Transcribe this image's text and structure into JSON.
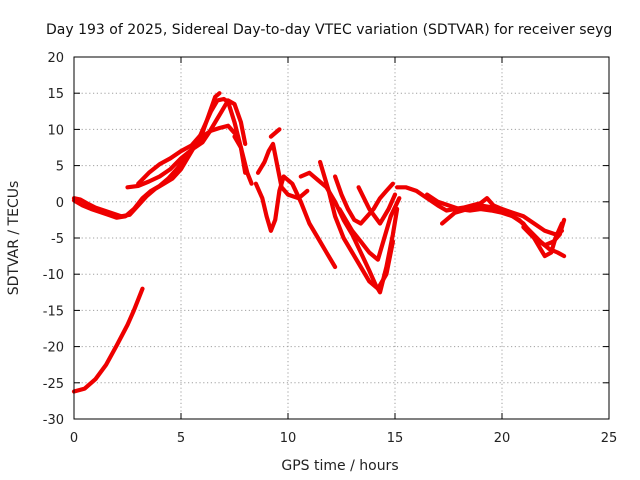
{
  "chart_data": {
    "type": "scatter",
    "title": "Day 193 of 2025, Sidereal Day-to-day VTEC variation (SDTVAR) for receiver seyg",
    "xlabel": "GPS time / hours",
    "ylabel": "SDTVAR / TECUs",
    "xlim": [
      0,
      25
    ],
    "ylim": [
      -30,
      20
    ],
    "xticks": [
      "0",
      "5",
      "10",
      "15",
      "20",
      "25"
    ],
    "yticks": [
      "-30",
      "-25",
      "-20",
      "-15",
      "-10",
      "-5",
      "0",
      "5",
      "10",
      "15",
      "20"
    ],
    "grid": true,
    "marker_color": "#ee0000",
    "series": [
      {
        "name": "seg-1",
        "x": [
          0,
          0.5,
          1.0,
          1.5,
          2.0,
          2.5,
          2.8,
          3.2
        ],
        "y": [
          -26.2,
          -25.8,
          -24.5,
          -22.5,
          -19.8,
          -17.0,
          -15.0,
          -12.0
        ]
      },
      {
        "name": "seg-2",
        "x": [
          0,
          0.3,
          0.6,
          1.0,
          1.4,
          1.8,
          2.2,
          2.6,
          3.0,
          3.4,
          3.8,
          4.2,
          4.6,
          5.0,
          5.4,
          5.8,
          6.1,
          6.4,
          6.7,
          7.0,
          7.2,
          7.5,
          7.8,
          8.0
        ],
        "y": [
          0.5,
          0.3,
          -0.2,
          -0.8,
          -1.2,
          -1.6,
          -2.0,
          -1.8,
          -0.5,
          0.8,
          1.8,
          2.5,
          3.2,
          4.5,
          6.5,
          8.5,
          10.5,
          12.5,
          14.0,
          14.2,
          13.8,
          11.0,
          7.5,
          4.0
        ]
      },
      {
        "name": "seg-3",
        "x": [
          0,
          0.4,
          0.8,
          1.2,
          1.6,
          2.0,
          2.4,
          2.8,
          3.2,
          3.6,
          4.0,
          4.4,
          4.8,
          5.2,
          5.6,
          6.0,
          6.4,
          6.8,
          7.2,
          7.5
        ],
        "y": [
          0.2,
          -0.5,
          -1.0,
          -1.4,
          -1.8,
          -2.2,
          -2.0,
          -1.0,
          0.5,
          1.5,
          2.2,
          3.2,
          4.5,
          6.0,
          7.5,
          9.0,
          9.8,
          10.2,
          10.5,
          9.5
        ]
      },
      {
        "name": "seg-4",
        "x": [
          2.5,
          3.0,
          3.5,
          4.0,
          4.5,
          5.0,
          5.5,
          6.0,
          6.3,
          6.6,
          6.9,
          7.2,
          7.5,
          7.8,
          8.0
        ],
        "y": [
          2.0,
          2.2,
          2.8,
          3.5,
          4.5,
          6.0,
          7.2,
          8.2,
          9.5,
          11.0,
          12.5,
          14.0,
          13.5,
          11.0,
          8.0
        ]
      },
      {
        "name": "seg-5",
        "x": [
          3.0,
          3.5,
          4.0,
          4.5,
          5.0,
          5.5,
          6.0,
          6.3,
          6.6,
          6.8
        ],
        "y": [
          2.5,
          4.0,
          5.2,
          6.0,
          7.0,
          7.8,
          9.5,
          12.0,
          14.5,
          15.0
        ]
      },
      {
        "name": "seg-6",
        "x": [
          7.5,
          7.8,
          8.1,
          8.3
        ],
        "y": [
          9.0,
          7.5,
          4.0,
          2.5
        ]
      },
      {
        "name": "seg-7",
        "x": [
          9.2,
          9.6
        ],
        "y": [
          9.0,
          10.0
        ]
      },
      {
        "name": "seg-8",
        "x": [
          8.5,
          8.8,
          9.0,
          9.2,
          9.4,
          9.6,
          9.8,
          10.2,
          10.6,
          11.0,
          11.4,
          11.8,
          12.2
        ],
        "y": [
          2.5,
          0.5,
          -2.0,
          -4.0,
          -2.5,
          1.5,
          3.5,
          2.5,
          0.0,
          -3.0,
          -5.0,
          -7.0,
          -9.0
        ]
      },
      {
        "name": "seg-9",
        "x": [
          8.6,
          8.9,
          9.1,
          9.3,
          9.5,
          9.7,
          10.0,
          10.5,
          10.9
        ],
        "y": [
          4.0,
          5.5,
          7.0,
          8.0,
          5.0,
          2.0,
          1.0,
          0.5,
          1.5
        ]
      },
      {
        "name": "seg-10",
        "x": [
          10.6,
          11.0,
          11.4,
          11.8,
          12.2,
          12.6,
          13.0,
          13.4,
          13.8,
          14.1,
          14.3,
          14.6,
          14.9,
          15.1
        ],
        "y": [
          3.5,
          4.0,
          3.0,
          2.0,
          0.0,
          -2.5,
          -4.5,
          -7.0,
          -9.5,
          -11.5,
          -12.5,
          -9.0,
          -4.5,
          -1.0
        ]
      },
      {
        "name": "seg-11",
        "x": [
          11.5,
          11.9,
          12.2,
          12.6,
          13.0,
          13.4,
          13.8,
          14.2,
          14.6,
          14.9
        ],
        "y": [
          5.5,
          1.5,
          -2.0,
          -5.0,
          -7.0,
          -9.0,
          -11.0,
          -12.0,
          -10.0,
          -5.5
        ]
      },
      {
        "name": "seg-12",
        "x": [
          12.2,
          12.5,
          12.8,
          13.1,
          13.4,
          13.7,
          14.0,
          14.3,
          14.6,
          14.9
        ],
        "y": [
          3.5,
          1.0,
          -1.0,
          -2.5,
          -3.0,
          -2.0,
          -1.0,
          0.5,
          1.5,
          2.5
        ]
      },
      {
        "name": "seg-13",
        "x": [
          12.4,
          12.7,
          13.0,
          13.4,
          13.8,
          14.2,
          14.5,
          14.8,
          15.2
        ],
        "y": [
          -1.0,
          -2.5,
          -4.0,
          -5.5,
          -7.0,
          -8.0,
          -5.0,
          -2.0,
          0.5
        ]
      },
      {
        "name": "seg-14",
        "x": [
          13.3,
          13.8,
          14.3,
          14.7,
          15.0
        ],
        "y": [
          2.0,
          -1.0,
          -3.0,
          -1.0,
          1.0
        ]
      },
      {
        "name": "seg-15",
        "x": [
          15.1,
          15.5,
          16.0,
          16.5,
          17.0,
          17.4,
          17.8,
          18.2,
          18.6,
          19.0,
          19.3,
          19.6,
          20.0,
          20.5,
          21.0,
          21.5,
          22.0,
          22.5,
          22.8
        ],
        "y": [
          2.0,
          2.0,
          1.5,
          0.5,
          -0.5,
          -1.2,
          -1.0,
          -0.8,
          -0.5,
          -0.2,
          0.5,
          -0.5,
          -1.0,
          -1.5,
          -2.0,
          -3.0,
          -4.0,
          -4.5,
          -4.0
        ]
      },
      {
        "name": "seg-16",
        "x": [
          16.5,
          17.0,
          17.5,
          18.0,
          18.5,
          19.0,
          19.5,
          20.0,
          20.5,
          21.0,
          21.5,
          21.8,
          22.0,
          22.3,
          22.5,
          22.8
        ],
        "y": [
          1.0,
          0.0,
          -0.5,
          -1.0,
          -1.2,
          -1.0,
          -1.2,
          -1.5,
          -2.0,
          -3.0,
          -5.0,
          -6.5,
          -7.5,
          -7.0,
          -5.0,
          -3.0
        ]
      },
      {
        "name": "seg-17",
        "x": [
          17.2,
          17.8,
          18.4,
          19.0,
          19.6,
          20.2,
          20.8,
          21.3,
          21.8,
          22.2,
          22.6,
          22.9
        ],
        "y": [
          -3.0,
          -1.5,
          -1.0,
          -0.5,
          -0.8,
          -1.5,
          -2.5,
          -4.0,
          -5.5,
          -6.5,
          -7.0,
          -7.5
        ]
      },
      {
        "name": "seg-18",
        "x": [
          21.0,
          21.5,
          22.0,
          22.4,
          22.7,
          22.9
        ],
        "y": [
          -3.5,
          -5.0,
          -6.0,
          -5.5,
          -4.5,
          -2.5
        ]
      }
    ]
  }
}
